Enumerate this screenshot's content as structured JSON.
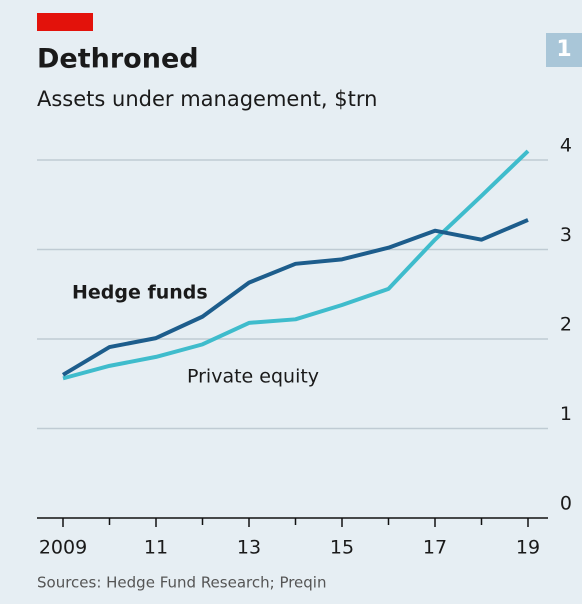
{
  "chart_data": {
    "type": "line",
    "title": "Dethroned",
    "subtitle": "Assets under management, $trn",
    "badge": "1",
    "source": "Sources: Hedge Fund Research; Preqin",
    "x": [
      2009,
      2010,
      2011,
      2012,
      2013,
      2014,
      2015,
      2016,
      2017,
      2018,
      2019
    ],
    "series": [
      {
        "name": "Hedge funds",
        "color": "#1d5d8c",
        "values": [
          1.6,
          1.91,
          2.01,
          2.25,
          2.63,
          2.84,
          2.89,
          3.02,
          3.21,
          3.11,
          3.33
        ]
      },
      {
        "name": "Private equity",
        "color": "#3fbccc",
        "values": [
          1.56,
          1.7,
          1.8,
          1.94,
          2.18,
          2.22,
          2.38,
          2.56,
          3.11,
          3.6,
          4.1
        ]
      }
    ],
    "xlim": [
      2009,
      2019
    ],
    "xticks": [
      {
        "value": 2009,
        "label": "2009"
      },
      {
        "value": 2011,
        "label": "11"
      },
      {
        "value": 2013,
        "label": "13"
      },
      {
        "value": 2015,
        "label": "15"
      },
      {
        "value": 2017,
        "label": "17"
      },
      {
        "value": 2019,
        "label": "19"
      }
    ],
    "xminorticks": [
      2010,
      2012,
      2014,
      2016,
      2018
    ],
    "ylim": [
      0,
      4
    ],
    "yticks": [
      0,
      1,
      2,
      3,
      4
    ],
    "grid": true
  }
}
